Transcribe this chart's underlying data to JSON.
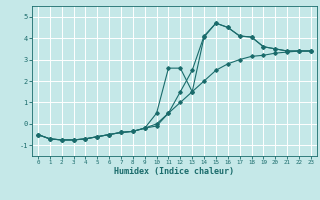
{
  "xlabel": "Humidex (Indice chaleur)",
  "xlim": [
    -0.5,
    23.5
  ],
  "ylim": [
    -1.5,
    5.5
  ],
  "yticks": [
    -1,
    0,
    1,
    2,
    3,
    4,
    5
  ],
  "xticks": [
    0,
    1,
    2,
    3,
    4,
    5,
    6,
    7,
    8,
    9,
    10,
    11,
    12,
    13,
    14,
    15,
    16,
    17,
    18,
    19,
    20,
    21,
    22,
    23
  ],
  "background_color": "#c5e8e8",
  "grid_color": "#ffffff",
  "line_color": "#1a6b6b",
  "line1_x": [
    0,
    1,
    2,
    3,
    4,
    5,
    6,
    7,
    8,
    9,
    10,
    11,
    12,
    13,
    14,
    15,
    16,
    17,
    18,
    19,
    20,
    21,
    22,
    23
  ],
  "line1_y": [
    -0.5,
    -0.7,
    -0.75,
    -0.75,
    -0.7,
    -0.6,
    -0.5,
    -0.4,
    -0.35,
    -0.2,
    -0.1,
    0.5,
    1.5,
    2.5,
    4.1,
    4.7,
    4.5,
    4.1,
    4.05,
    3.6,
    3.5,
    3.4,
    3.4,
    3.4
  ],
  "line2_x": [
    0,
    1,
    2,
    3,
    4,
    5,
    6,
    7,
    8,
    9,
    10,
    11,
    12,
    13,
    14,
    15,
    16,
    17,
    18,
    19,
    20,
    21,
    22,
    23
  ],
  "line2_y": [
    -0.5,
    -0.7,
    -0.75,
    -0.75,
    -0.7,
    -0.6,
    -0.5,
    -0.4,
    -0.35,
    -0.2,
    0.5,
    2.6,
    2.6,
    1.5,
    4.05,
    4.7,
    4.5,
    4.1,
    4.05,
    3.6,
    3.5,
    3.4,
    3.4,
    3.4
  ],
  "line3_x": [
    0,
    1,
    2,
    3,
    4,
    5,
    6,
    7,
    8,
    9,
    10,
    11,
    12,
    13,
    14,
    15,
    16,
    17,
    18,
    19,
    20,
    21,
    22,
    23
  ],
  "line3_y": [
    -0.5,
    -0.7,
    -0.75,
    -0.75,
    -0.7,
    -0.6,
    -0.5,
    -0.4,
    -0.35,
    -0.2,
    0.0,
    0.5,
    1.0,
    1.5,
    2.0,
    2.5,
    2.8,
    3.0,
    3.15,
    3.2,
    3.3,
    3.35,
    3.4,
    3.4
  ],
  "figsize": [
    3.2,
    2.0
  ],
  "dpi": 100
}
